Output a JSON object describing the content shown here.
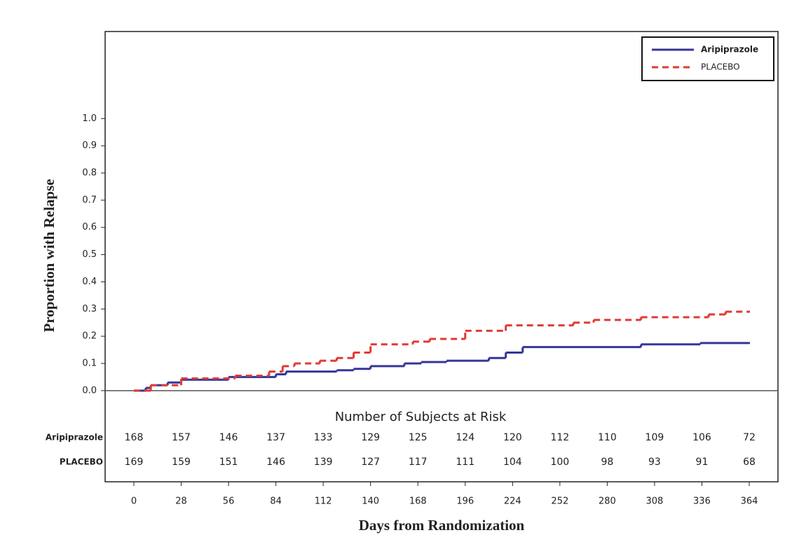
{
  "chart_data": {
    "type": "line",
    "step": true,
    "x_label": "Days from Randomization",
    "y_label": "Proportion with Relapse",
    "xlim": [
      -17,
      381
    ],
    "ylim": [
      -0.335,
      1.32
    ],
    "xticks": [
      0,
      28,
      56,
      84,
      112,
      140,
      168,
      196,
      224,
      252,
      280,
      308,
      336,
      364
    ],
    "yticks": [
      {
        "value": 0,
        "label": "0.0"
      },
      {
        "value": 0.1,
        "label": "0.1"
      },
      {
        "value": 0.2,
        "label": "0.2"
      },
      {
        "value": 0.3,
        "label": "0.3"
      },
      {
        "value": 0.4,
        "label": "0.4"
      },
      {
        "value": 0.5,
        "label": "0.5"
      },
      {
        "value": 0.6,
        "label": "0.6"
      },
      {
        "value": 0.7,
        "label": "0.7"
      },
      {
        "value": 0.8,
        "label": "0.8"
      },
      {
        "value": 0.9,
        "label": "0.9"
      },
      {
        "value": 1,
        "label": "1.0"
      }
    ],
    "legend": "upper right",
    "series": [
      {
        "name": "Aripiprazole",
        "color": "#35359a",
        "dash": false,
        "x": [
          0,
          7,
          10,
          20,
          28,
          56,
          84,
          90,
          120,
          130,
          140,
          160,
          170,
          185,
          210,
          220,
          230,
          300,
          335,
          364
        ],
        "values": [
          0,
          0.01,
          0.02,
          0.03,
          0.04,
          0.05,
          0.06,
          0.07,
          0.075,
          0.08,
          0.09,
          0.1,
          0.105,
          0.11,
          0.12,
          0.14,
          0.16,
          0.17,
          0.175,
          0.175
        ]
      },
      {
        "name": "PLACEBO",
        "color": "#e03a32",
        "dash": true,
        "x": [
          0,
          10,
          28,
          60,
          80,
          88,
          95,
          110,
          120,
          130,
          140,
          165,
          175,
          196,
          220,
          260,
          272,
          300,
          340,
          350,
          364
        ],
        "values": [
          0,
          0.02,
          0.045,
          0.055,
          0.07,
          0.09,
          0.1,
          0.11,
          0.12,
          0.14,
          0.17,
          0.18,
          0.19,
          0.22,
          0.24,
          0.25,
          0.26,
          0.27,
          0.28,
          0.29,
          0.29
        ]
      }
    ],
    "risk_table": {
      "title": "Number of Subjects at Risk",
      "rows": [
        {
          "label": "Aripiprazole",
          "values": [
            168,
            157,
            146,
            137,
            133,
            129,
            125,
            124,
            120,
            112,
            110,
            109,
            106,
            72
          ]
        },
        {
          "label": "PLACEBO",
          "values": [
            169,
            159,
            151,
            146,
            139,
            127,
            117,
            111,
            104,
            100,
            98,
            93,
            91,
            68
          ]
        }
      ]
    }
  }
}
